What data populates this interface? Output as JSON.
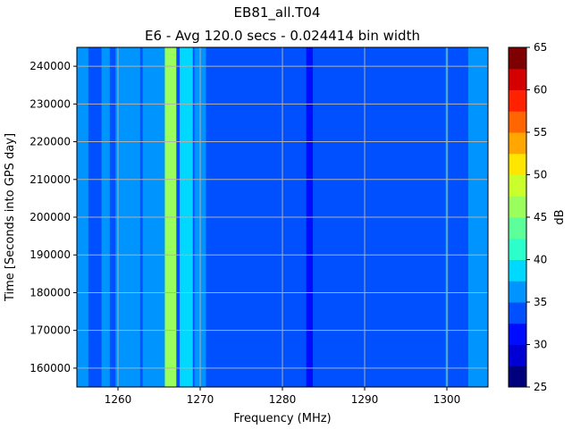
{
  "chart_data": {
    "type": "heatmap",
    "title": "EB81_all.T04",
    "subtitle": "E6 - Avg 120.0 secs - 0.024414 bin width",
    "xlabel": "Frequency (MHz)",
    "ylabel": "Time [Seconds into GPS day]",
    "xlim": [
      1255,
      1305
    ],
    "ylim": [
      155000,
      245000
    ],
    "x_ticks": [
      1260,
      1270,
      1280,
      1290,
      1300
    ],
    "y_ticks": [
      160000,
      170000,
      180000,
      190000,
      200000,
      210000,
      220000,
      230000,
      240000
    ],
    "grid": true,
    "colorbar": {
      "label": "dB",
      "min": 25,
      "max": 65,
      "ticks": [
        25,
        30,
        35,
        40,
        45,
        50,
        55,
        60,
        65
      ],
      "levels": [
        25,
        27.5,
        30,
        32.5,
        35,
        37.5,
        40,
        42.5,
        45,
        47.5,
        50,
        52.5,
        55,
        57.5,
        60,
        62.5,
        65
      ],
      "colormap": [
        "#00007f",
        "#0000d4",
        "#000cff",
        "#0050ff",
        "#0094ff",
        "#00d8ff",
        "#2cffca",
        "#5cff9a",
        "#9aff5c",
        "#caff2c",
        "#ffe600",
        "#ffa600",
        "#ff6500",
        "#ff2200",
        "#d40000",
        "#7f0000"
      ]
    },
    "background_level_db": 33,
    "spectral_features": [
      {
        "center_mhz": 1255.7,
        "width_mhz": 1.4,
        "level_db": 35.5
      },
      {
        "center_mhz": 1258.5,
        "width_mhz": 1.0,
        "level_db": 36.0
      },
      {
        "center_mhz": 1261.2,
        "width_mhz": 3.0,
        "level_db": 37.0
      },
      {
        "center_mhz": 1264.5,
        "width_mhz": 3.0,
        "level_db": 36.5
      },
      {
        "center_mhz": 1266.4,
        "width_mhz": 1.4,
        "level_db": 46.0
      },
      {
        "center_mhz": 1268.3,
        "width_mhz": 1.6,
        "level_db": 37.5
      },
      {
        "center_mhz": 1270.0,
        "width_mhz": 1.4,
        "level_db": 35.5
      },
      {
        "center_mhz": 1283.3,
        "width_mhz": 0.8,
        "level_db": 31.0
      },
      {
        "center_mhz": 1300.0,
        "width_mhz": 0.3,
        "level_db": 37.0
      },
      {
        "center_mhz": 1303.8,
        "width_mhz": 2.4,
        "level_db": 35.5
      }
    ]
  }
}
